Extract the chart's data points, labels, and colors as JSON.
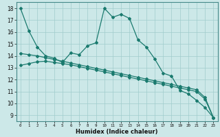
{
  "xlabel": "Humidex (Indice chaleur)",
  "background_color": "#cce8e8",
  "line_color": "#1a7a6e",
  "grid_color": "#a0cccc",
  "xlim": [
    -0.5,
    23.5
  ],
  "ylim": [
    8.5,
    18.5
  ],
  "xticks": [
    0,
    1,
    2,
    3,
    4,
    5,
    6,
    7,
    8,
    9,
    10,
    11,
    12,
    13,
    14,
    15,
    16,
    17,
    18,
    19,
    20,
    21,
    22,
    23
  ],
  "yticks": [
    9,
    10,
    11,
    12,
    13,
    14,
    15,
    16,
    17,
    18
  ],
  "series1_x": [
    0,
    1,
    2,
    3,
    4,
    5,
    6,
    7,
    8,
    9,
    10,
    11,
    12,
    13,
    14,
    15,
    16,
    17,
    18,
    19,
    20,
    21,
    22,
    23
  ],
  "series1_y": [
    18,
    16.1,
    14.75,
    14.0,
    13.8,
    13.45,
    14.25,
    14.1,
    14.85,
    15.1,
    18.0,
    17.25,
    17.5,
    17.15,
    15.35,
    14.75,
    13.75,
    12.55,
    12.3,
    11.1,
    10.8,
    10.25,
    9.65,
    8.8
  ],
  "series2_x": [
    0,
    1,
    2,
    3,
    4,
    5,
    6,
    7,
    8,
    9,
    10,
    11,
    12,
    13,
    14,
    15,
    16,
    17,
    18,
    19,
    20,
    21,
    22,
    23
  ],
  "series2_y": [
    14.2,
    14.1,
    14.0,
    13.85,
    13.7,
    13.55,
    13.4,
    13.25,
    13.1,
    12.95,
    12.8,
    12.65,
    12.5,
    12.35,
    12.2,
    12.05,
    11.9,
    11.75,
    11.6,
    11.45,
    11.3,
    11.15,
    10.5,
    8.8
  ],
  "series3_x": [
    0,
    1,
    2,
    3,
    4,
    5,
    6,
    7,
    8,
    9,
    10,
    11,
    12,
    13,
    14,
    15,
    16,
    17,
    18,
    19,
    20,
    21,
    22,
    23
  ],
  "series3_y": [
    13.2,
    13.35,
    13.5,
    13.55,
    13.45,
    13.35,
    13.25,
    13.1,
    12.95,
    12.8,
    12.65,
    12.5,
    12.35,
    12.2,
    12.05,
    11.9,
    11.75,
    11.6,
    11.45,
    11.3,
    11.15,
    11.0,
    10.35,
    8.8
  ]
}
